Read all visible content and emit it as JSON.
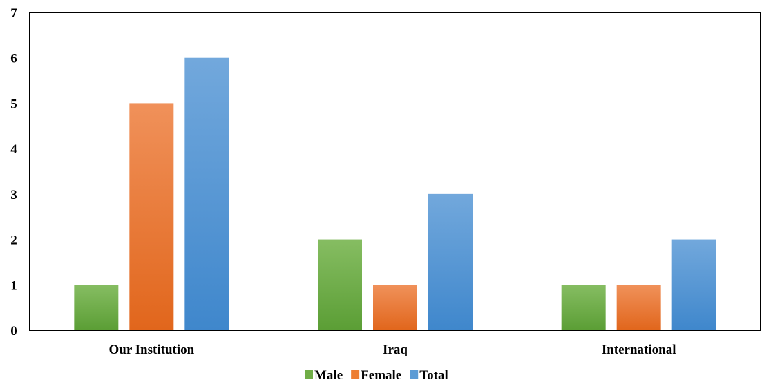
{
  "chart_data": {
    "type": "bar",
    "categories": [
      "Our Institution",
      "Iraq",
      "International"
    ],
    "series": [
      {
        "name": "Male",
        "values": [
          1,
          2,
          1
        ],
        "color": "#70ad47"
      },
      {
        "name": "Female",
        "values": [
          5,
          1,
          1
        ],
        "color": "#ed7d31"
      },
      {
        "name": "Total",
        "values": [
          6,
          3,
          2
        ],
        "color": "#5b9bd5"
      }
    ],
    "y_ticks": [
      "0",
      "1",
      "2",
      "3",
      "4",
      "5",
      "6",
      "7"
    ],
    "ylim": [
      0,
      7
    ],
    "grid": false,
    "legend_position": "bottom-center",
    "title": "",
    "xlabel": "",
    "ylabel": ""
  }
}
